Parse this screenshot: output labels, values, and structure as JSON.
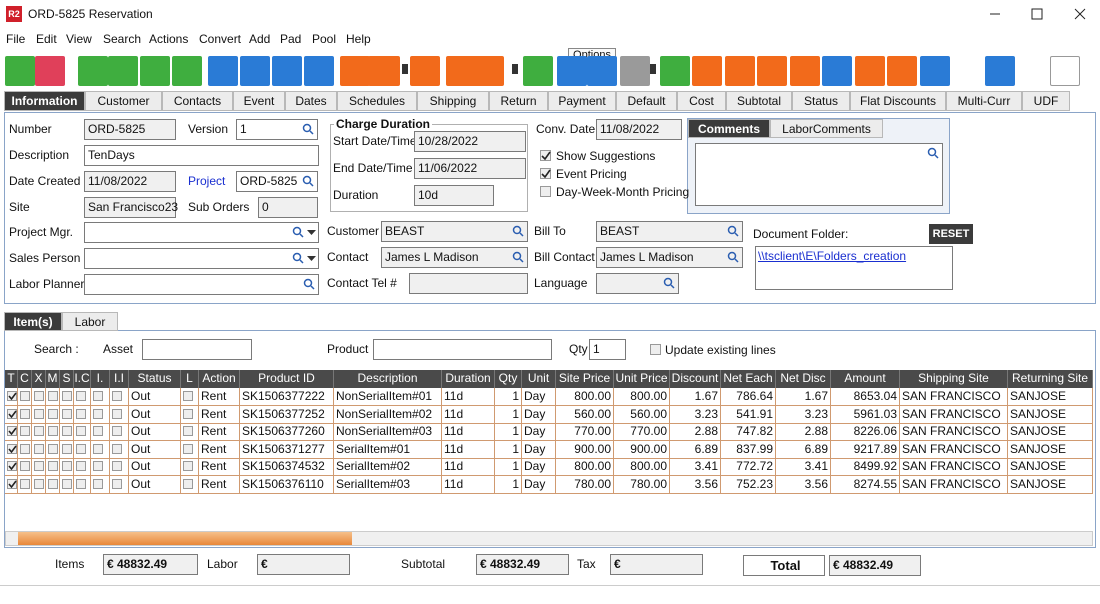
{
  "window": {
    "icon": "R2",
    "title": "ORD-5825 Reservation"
  },
  "menu": [
    "File",
    "Edit",
    "View",
    "Search",
    "Actions",
    "Convert",
    "Add",
    "Pad",
    "Pool",
    "Help"
  ],
  "tooltip": "Options",
  "tabs": [
    "Information",
    "Customer",
    "Contacts",
    "Event",
    "Dates",
    "Schedules",
    "Shipping",
    "Return",
    "Payment",
    "Default",
    "Cost",
    "Subtotal",
    "Status",
    "Flat Discounts",
    "Multi-Curr",
    "UDF"
  ],
  "form": {
    "number": {
      "label": "Number",
      "value": "ORD-5825"
    },
    "version": {
      "label": "Version",
      "value": "1"
    },
    "description": {
      "label": "Description",
      "value": "TenDays"
    },
    "date_created": {
      "label": "Date Created",
      "value": "11/08/2022"
    },
    "project": {
      "label": "Project",
      "value": "ORD-5825"
    },
    "site": {
      "label": "Site",
      "value": "San Francisco23"
    },
    "sub_orders": {
      "label": "Sub Orders",
      "value": "0"
    },
    "project_mgr": {
      "label": "Project Mgr."
    },
    "sales_person": {
      "label": "Sales Person"
    },
    "labor_planner": {
      "label": "Labor Planner"
    },
    "charge_duration": {
      "title": "Charge Duration",
      "start": {
        "label": "Start Date/Time",
        "value": "10/28/2022"
      },
      "end": {
        "label": "End Date/Time",
        "value": "11/06/2022"
      },
      "duration": {
        "label": "Duration",
        "value": "10d"
      }
    },
    "conv_date": {
      "label": "Conv. Date",
      "value": "11/08/2022"
    },
    "options": [
      {
        "label": "Show Suggestions",
        "checked": true
      },
      {
        "label": "Event Pricing",
        "checked": true
      },
      {
        "label": "Day-Week-Month Pricing",
        "checked": false
      }
    ],
    "customer": {
      "label": "Customer",
      "value": "BEAST"
    },
    "contact": {
      "label": "Contact",
      "value": "James L Madison"
    },
    "contact_tel": {
      "label": "Contact Tel #"
    },
    "bill_to": {
      "label": "Bill To",
      "value": "BEAST"
    },
    "bill_contact": {
      "label": "Bill Contact",
      "value": "James L Madison"
    },
    "language": {
      "label": "Language"
    },
    "comment_tabs": [
      "Comments",
      "LaborComments"
    ],
    "document_folder": {
      "label": "Document Folder:",
      "button": "RESET",
      "link": "\\\\tsclient\\E\\Folders_creation"
    }
  },
  "item_tabs": [
    "Item(s)",
    "Labor"
  ],
  "search": {
    "label": "Search :",
    "asset": "Asset",
    "product": "Product",
    "qty": {
      "label": "Qty",
      "value": "1"
    },
    "update": "Update existing lines"
  },
  "table": {
    "columns": [
      "T",
      "C",
      "X",
      "M",
      "S",
      "I.C",
      "I.",
      "I.I",
      "Status",
      "L",
      "Action",
      "Product ID",
      "Description",
      "Duration",
      "Qty",
      "Unit",
      "Site Price",
      "Unit Price",
      "Discount",
      "Net Each",
      "Net Disc",
      "Amount",
      "Shipping Site",
      "Returning Site"
    ],
    "rows": [
      [
        "Out",
        "Rent",
        "SK1506377222",
        "NonSerialItem#01",
        "11d",
        "1",
        "Day",
        "800.00",
        "800.00",
        "1.67",
        "786.64",
        "1.67",
        "8653.04",
        "SAN FRANCISCO",
        "SANJOSE"
      ],
      [
        "Out",
        "Rent",
        "SK1506377252",
        "NonSerialItem#02",
        "11d",
        "1",
        "Day",
        "560.00",
        "560.00",
        "3.23",
        "541.91",
        "3.23",
        "5961.03",
        "SAN FRANCISCO",
        "SANJOSE"
      ],
      [
        "Out",
        "Rent",
        "SK1506377260",
        "NonSerialItem#03",
        "11d",
        "1",
        "Day",
        "770.00",
        "770.00",
        "2.88",
        "747.82",
        "2.88",
        "8226.06",
        "SAN FRANCISCO",
        "SANJOSE"
      ],
      [
        "Out",
        "Rent",
        "SK1506371277",
        "SerialItem#01",
        "11d",
        "1",
        "Day",
        "900.00",
        "900.00",
        "6.89",
        "837.99",
        "6.89",
        "9217.89",
        "SAN FRANCISCO",
        "SANJOSE"
      ],
      [
        "Out",
        "Rent",
        "SK1506374532",
        "SerialItem#02",
        "11d",
        "1",
        "Day",
        "800.00",
        "800.00",
        "3.41",
        "772.72",
        "3.41",
        "8499.92",
        "SAN FRANCISCO",
        "SANJOSE"
      ],
      [
        "Out",
        "Rent",
        "SK1506376110",
        "SerialItem#03",
        "11d",
        "1",
        "Day",
        "780.00",
        "780.00",
        "3.56",
        "752.23",
        "3.56",
        "8274.55",
        "SAN FRANCISCO",
        "SANJOSE"
      ]
    ]
  },
  "totals": {
    "items": {
      "label": "Items",
      "value": "€ 48832.49"
    },
    "labor": {
      "label": "Labor",
      "value": "€"
    },
    "subtotal": {
      "label": "Subtotal",
      "value": "€ 48832.49"
    },
    "tax": {
      "label": "Tax",
      "value": "€"
    },
    "total": {
      "label": "Total",
      "value": "€ 48832.49"
    }
  }
}
